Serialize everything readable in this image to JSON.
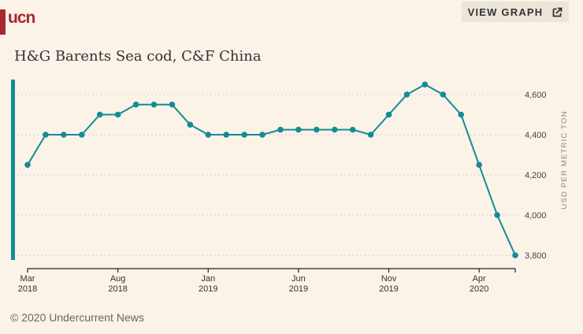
{
  "brand": {
    "logo_text": "ucn",
    "brand_color": "#a8272f"
  },
  "toolbar": {
    "view_graph_label": "VIEW GRAPH",
    "view_graph_icon": "external-link-icon"
  },
  "footer": {
    "copyright": "© 2020 Undercurrent News"
  },
  "chart_data": {
    "type": "line",
    "title": "H&G Barents Sea cod, C&F China",
    "xlabel": "",
    "ylabel": "USD PER METRIC TON",
    "series_color": "#138c94",
    "ylim": [
      3800,
      4650
    ],
    "yticks": [
      3800,
      4000,
      4200,
      4400,
      4600
    ],
    "ytick_labels": [
      "3,800",
      "4,000",
      "4,200",
      "4,400",
      "4,600"
    ],
    "grid": "horizontal-dotted",
    "y_axis_side": "right",
    "x": [
      "Mar 2018",
      "Apr 2018",
      "May 2018",
      "Jun 2018",
      "Jul 2018",
      "Aug 2018",
      "Sep 2018",
      "Oct 2018",
      "Nov 2018",
      "Dec 2018",
      "Jan 2019",
      "Feb 2019",
      "Mar 2019",
      "Apr 2019",
      "May 2019",
      "Jun 2019",
      "Jul 2019",
      "Aug 2019",
      "Sep 2019",
      "Oct 2019",
      "Nov 2019",
      "Dec 2019",
      "Jan 2020",
      "Feb 2020",
      "Mar 2020",
      "Apr 2020",
      "May 2020",
      "Jun 2020"
    ],
    "xticks": [
      {
        "index": 0,
        "month": "Mar",
        "year": "2018"
      },
      {
        "index": 5,
        "month": "Aug",
        "year": "2018"
      },
      {
        "index": 10,
        "month": "Jan",
        "year": "2019"
      },
      {
        "index": 15,
        "month": "Jun",
        "year": "2019"
      },
      {
        "index": 20,
        "month": "Nov",
        "year": "2019"
      },
      {
        "index": 25,
        "month": "Apr",
        "year": "2020"
      }
    ],
    "series": [
      {
        "name": "H&G Barents Sea cod, C&F China",
        "values": [
          4250,
          4400,
          4400,
          4400,
          4500,
          4500,
          4550,
          4550,
          4550,
          4450,
          4400,
          4400,
          4400,
          4400,
          4425,
          4425,
          4425,
          4425,
          4425,
          4400,
          4500,
          4600,
          4650,
          4600,
          4500,
          4250,
          4000,
          3800
        ]
      }
    ]
  }
}
